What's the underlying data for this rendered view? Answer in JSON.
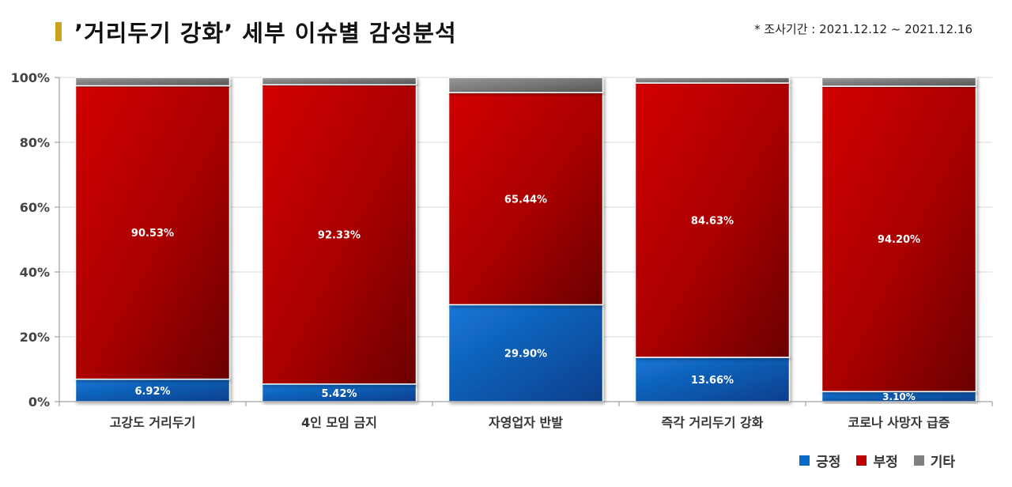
{
  "header": {
    "title": "’거리두기 강화’ 세부 이슈별 감성분석",
    "period": "* 조사기간 : 2021.12.12 ~ 2021.12.16"
  },
  "colors": {
    "positive": "#0a6ac8",
    "negative": "#c00000",
    "other": "#808080",
    "marker": "#c8a21c"
  },
  "chart_data": {
    "type": "bar",
    "stacked": true,
    "title": "’거리두기 강화’ 세부 이슈별 감성분석",
    "categories": [
      "고강도 거리두기",
      "4인 모임 금지",
      "자영업자 반발",
      "즉각 거리두기 강화",
      "코로나 사망자 급증"
    ],
    "series": [
      {
        "name": "긍정",
        "values": [
          6.92,
          5.42,
          29.9,
          13.66,
          3.1
        ],
        "labels": [
          "6.92%",
          "5.42%",
          "29.90%",
          "13.66%",
          "3.10%"
        ],
        "color": "#0a6ac8"
      },
      {
        "name": "부정",
        "values": [
          90.53,
          92.33,
          65.44,
          84.63,
          94.2
        ],
        "labels": [
          "90.53%",
          "92.33%",
          "65.44%",
          "84.63%",
          "94.20%"
        ],
        "color": "#c00000"
      },
      {
        "name": "기타",
        "values": [
          2.55,
          2.25,
          4.66,
          1.71,
          2.7
        ],
        "labels": [],
        "color": "#808080"
      }
    ],
    "ylim": [
      0,
      100
    ],
    "yticks": [
      "0%",
      "20%",
      "40%",
      "60%",
      "80%",
      "100%"
    ],
    "grid": true,
    "legend_position": "bottom-right"
  }
}
